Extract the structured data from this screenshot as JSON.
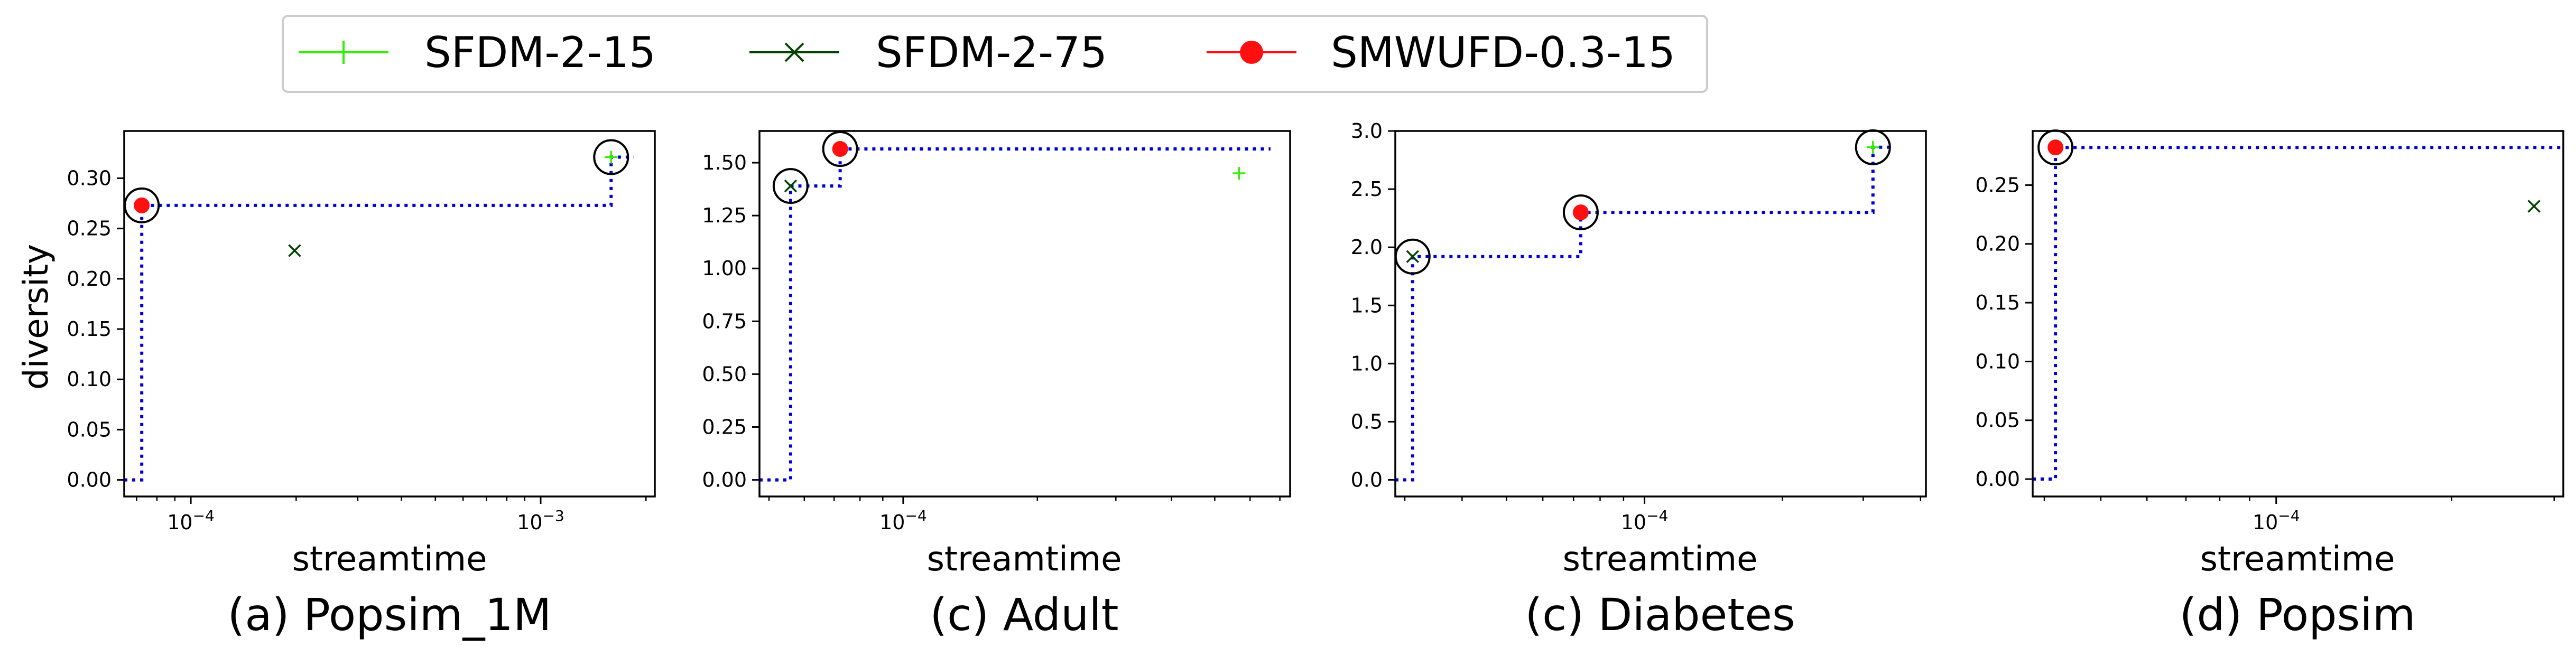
{
  "legend": {
    "entries": [
      {
        "label": "SFDM-2-15",
        "color": "#33ee00",
        "marker": "plus-icon"
      },
      {
        "label": "SFDM-2-75",
        "color": "#004400",
        "marker": "x-icon"
      },
      {
        "label": "SMWUFD-0.3-15",
        "color": "#ff1010",
        "marker": "dot-icon"
      }
    ]
  },
  "colors": {
    "step_line": "#0000dd",
    "circle": "#000000"
  },
  "shared": {
    "ylabel": "diversity"
  },
  "chart_data": [
    {
      "type": "scatter",
      "caption": "(a) Popsim_1M",
      "xlabel": "streamtime",
      "xscale": "log",
      "xlim": [
        6.45e-05,
        0.00212
      ],
      "ylim": [
        -0.0165,
        0.347
      ],
      "xticks": [
        {
          "value": 0.0001,
          "base": "10",
          "exp": "−4"
        },
        {
          "value": 0.001,
          "base": "10",
          "exp": "−3"
        }
      ],
      "yticks": [
        0,
        0.05,
        0.1,
        0.15,
        0.2,
        0.25,
        0.3
      ],
      "ytick_labels": [
        "0.00",
        "0.05",
        "0.10",
        "0.15",
        "0.20",
        "0.25",
        "0.30"
      ],
      "show_ylabel": true,
      "series": [
        {
          "name": "SFDM-2-15",
          "marker": "plus",
          "points": [
            [
              0.00159,
              0.321
            ]
          ]
        },
        {
          "name": "SFDM-2-75",
          "marker": "x",
          "points": [
            [
              0.000198,
              0.228
            ]
          ]
        },
        {
          "name": "SMWUFD-0.3-15",
          "marker": "dot",
          "points": [
            [
              7.24e-05,
              0.273
            ]
          ]
        }
      ],
      "pareto_circles": [
        [
          7.24e-05,
          0.273
        ],
        [
          0.00159,
          0.321
        ]
      ],
      "frontier": [
        [
          6.45e-05,
          0
        ],
        [
          7.24e-05,
          0
        ],
        [
          7.24e-05,
          0.273
        ],
        [
          0.00159,
          0.273
        ],
        [
          0.00159,
          0.321
        ],
        [
          0.00185,
          0.321
        ]
      ]
    },
    {
      "type": "scatter",
      "caption": "(c) Adult",
      "xlabel": "streamtime",
      "xscale": "log",
      "xlim": [
        4.76e-05,
        0.000738
      ],
      "ylim": [
        -0.0785,
        1.65
      ],
      "xticks": [
        {
          "value": 0.0001,
          "base": "10",
          "exp": "−4"
        }
      ],
      "yticks": [
        0,
        0.25,
        0.5,
        0.75,
        1,
        1.25,
        1.5
      ],
      "ytick_labels": [
        "0.00",
        "0.25",
        "0.50",
        "0.75",
        "1.00",
        "1.25",
        "1.50"
      ],
      "show_ylabel": false,
      "series": [
        {
          "name": "SFDM-2-15",
          "marker": "plus",
          "points": [
            [
              0.000567,
              1.45
            ]
          ]
        },
        {
          "name": "SFDM-2-75",
          "marker": "x",
          "points": [
            [
              5.59e-05,
              1.39
            ]
          ]
        },
        {
          "name": "SMWUFD-0.3-15",
          "marker": "dot",
          "points": [
            [
              7.22e-05,
              1.565
            ]
          ]
        }
      ],
      "pareto_circles": [
        [
          5.59e-05,
          1.39
        ],
        [
          7.22e-05,
          1.565
        ]
      ],
      "frontier": [
        [
          4.76e-05,
          0
        ],
        [
          5.59e-05,
          0
        ],
        [
          5.59e-05,
          1.39
        ],
        [
          7.22e-05,
          1.39
        ],
        [
          7.22e-05,
          1.565
        ],
        [
          0.000667,
          1.565
        ]
      ]
    },
    {
      "type": "scatter",
      "caption": "(c) Diabetes",
      "xlabel": "streamtime",
      "xscale": "log",
      "xlim": [
        2.86e-05,
        0.000411
      ],
      "ylim": [
        -0.143,
        3.0
      ],
      "xticks": [
        {
          "value": 0.0001,
          "base": "10",
          "exp": "−4"
        }
      ],
      "yticks": [
        0,
        0.5,
        1,
        1.5,
        2,
        2.5,
        3
      ],
      "ytick_labels": [
        "0.0",
        "0.5",
        "1.0",
        "1.5",
        "2.0",
        "2.5",
        "3.0"
      ],
      "show_ylabel": false,
      "series": [
        {
          "name": "SFDM-2-15",
          "marker": "plus",
          "points": [
            [
              0.000315,
              2.86
            ]
          ]
        },
        {
          "name": "SFDM-2-75",
          "marker": "x",
          "points": [
            [
              3.12e-05,
              1.92
            ]
          ]
        },
        {
          "name": "SMWUFD-0.3-15",
          "marker": "dot",
          "points": [
            [
              7.26e-05,
              2.3
            ]
          ]
        }
      ],
      "pareto_circles": [
        [
          3.12e-05,
          1.92
        ],
        [
          7.26e-05,
          2.3
        ],
        [
          0.000315,
          2.86
        ]
      ],
      "frontier": [
        [
          2.86e-05,
          0
        ],
        [
          3.12e-05,
          0
        ],
        [
          3.12e-05,
          1.92
        ],
        [
          7.26e-05,
          1.92
        ],
        [
          7.26e-05,
          2.3
        ],
        [
          0.000315,
          2.3
        ],
        [
          0.000315,
          2.86
        ],
        [
          0.000347,
          2.86
        ]
      ]
    },
    {
      "type": "scatter",
      "caption": "(d) Popsim",
      "xlabel": "streamtime",
      "xscale": "log",
      "xlim": [
        3.82e-05,
        0.000311
      ],
      "ylim": [
        -0.0148,
        0.296
      ],
      "xticks": [
        {
          "value": 0.0001,
          "base": "10",
          "exp": "−4"
        }
      ],
      "yticks": [
        0,
        0.05,
        0.1,
        0.15,
        0.2,
        0.25
      ],
      "ytick_labels": [
        "0.00",
        "0.05",
        "0.10",
        "0.15",
        "0.20",
        "0.25"
      ],
      "show_ylabel": false,
      "series": [
        {
          "name": "SFDM-2-75",
          "marker": "x",
          "points": [
            [
              0.000277,
              0.232
            ]
          ]
        },
        {
          "name": "SMWUFD-0.3-15",
          "marker": "dot",
          "points": [
            [
              4.18e-05,
              0.282
            ]
          ]
        }
      ],
      "pareto_circles": [
        [
          4.18e-05,
          0.282
        ]
      ],
      "frontier": [
        [
          3.82e-05,
          0
        ],
        [
          4.18e-05,
          0
        ],
        [
          4.18e-05,
          0.282
        ],
        [
          0.000311,
          0.282
        ]
      ]
    }
  ]
}
